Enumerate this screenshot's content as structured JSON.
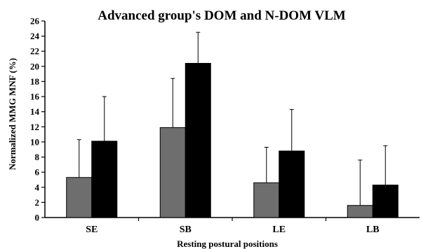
{
  "chart_data": {
    "type": "bar",
    "title": "Advanced group's DOM and N-DOM VLM",
    "xlabel": "Resting postural positions",
    "ylabel": "Normalized MMG MNF (%)",
    "ylim": [
      0,
      26
    ],
    "yticks": [
      0,
      2,
      4,
      6,
      8,
      10,
      12,
      14,
      16,
      18,
      20,
      22,
      24,
      26
    ],
    "categories": [
      "SE",
      "SB",
      "LE",
      "LB"
    ],
    "series": [
      {
        "color": "#6e6e6e",
        "values": [
          5.3,
          11.9,
          4.6,
          1.6
        ],
        "error_upper": [
          5.0,
          6.5,
          4.7,
          6.0
        ]
      },
      {
        "color": "#000000",
        "values": [
          10.1,
          20.4,
          8.8,
          4.3
        ],
        "error_upper": [
          5.9,
          4.1,
          5.5,
          5.2
        ]
      }
    ],
    "grid": false,
    "legend": "none"
  }
}
